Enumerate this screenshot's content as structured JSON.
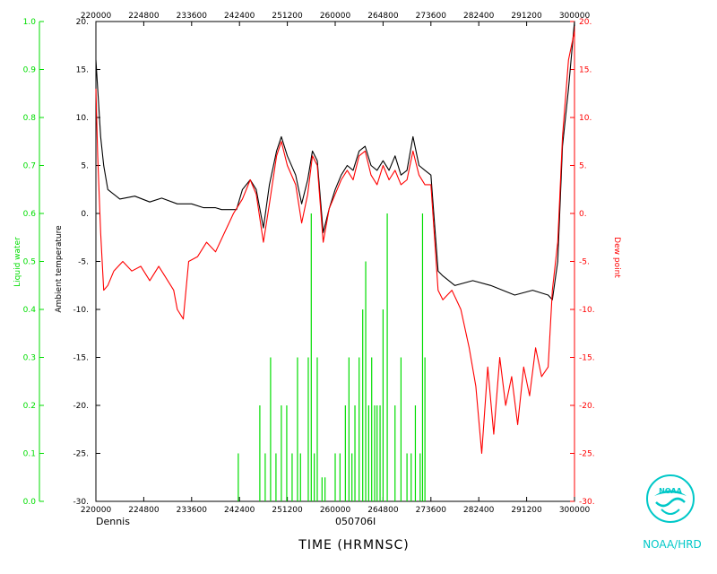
{
  "labels": {
    "storm": "Dennis",
    "flight_id": "050706I",
    "x_axis_title": "TIME (HRMNSC)",
    "left_outer_axis_title": "Liquid water",
    "left_inner_axis_title": "Ambient temperature",
    "right_axis_title": "Dew point",
    "logo_text": "NOAA/HRD",
    "logo_emblem_text": "NOAA"
  },
  "colors": {
    "temperature": "#000000",
    "dewpoint": "#ff0000",
    "liquid_water": "#00dd00",
    "logo": "#00c8c8"
  },
  "chart_data": {
    "type": "line",
    "xlim": [
      220000,
      300000
    ],
    "x_tick_labels": [
      "220000",
      "224800",
      "233600",
      "242400",
      "251200",
      "260000",
      "264800",
      "273600",
      "282400",
      "291200",
      "300000"
    ],
    "temperature_axis": {
      "ylim": [
        -30,
        20
      ],
      "ticks": [
        "20.",
        "15.",
        "10.",
        "5.",
        "0.",
        "-5.",
        "-10.",
        "-15.",
        "-20.",
        "-25.",
        "-30."
      ]
    },
    "dewpoint_axis": {
      "ylim": [
        -30,
        20
      ],
      "ticks": [
        "20.",
        "15.",
        "10.",
        "5.",
        "0.",
        "-5.",
        "-10.",
        "-15.",
        "-20.",
        "-25.",
        "-30."
      ]
    },
    "liquid_water_axis": {
      "ylim": [
        0,
        1
      ],
      "ticks": [
        "1.0",
        "0.9",
        "0.8",
        "0.7",
        "0.6",
        "0.5",
        "0.4",
        "0.3",
        "0.2",
        "0.1",
        "0.0"
      ]
    },
    "series": [
      {
        "name": "Ambient temperature",
        "axis": "temperature",
        "x": [
          220000,
          220300,
          220800,
          221300,
          222000,
          224000,
          226500,
          229000,
          231000,
          233600,
          236000,
          238000,
          240000,
          241000,
          243500,
          244500,
          245800,
          246800,
          248000,
          249000,
          250200,
          251000,
          252000,
          253400,
          254400,
          255400,
          256200,
          257000,
          258000,
          259000,
          260000,
          261000,
          262000,
          263000,
          264000,
          265000,
          266000,
          267000,
          268000,
          269000,
          270000,
          271000,
          272000,
          273000,
          274000,
          275000,
          276000,
          277200,
          278000,
          280000,
          283000,
          286000,
          290000,
          293000,
          295600,
          296300,
          297200,
          298000,
          299000,
          300000
        ],
        "y": [
          16,
          13,
          8,
          5,
          2.5,
          1.5,
          1.8,
          1.2,
          1.6,
          1.0,
          1.0,
          0.6,
          0.6,
          0.4,
          0.4,
          2.5,
          3.5,
          2.5,
          -1.5,
          3.0,
          6.5,
          8.0,
          6.0,
          4.0,
          1.0,
          3.5,
          6.5,
          5.5,
          -2.0,
          0.5,
          2.5,
          4.0,
          5.0,
          4.5,
          6.5,
          7.0,
          5.0,
          4.5,
          5.5,
          4.5,
          6.0,
          4.0,
          4.5,
          8.0,
          5.0,
          4.5,
          4.0,
          -6.0,
          -6.5,
          -7.5,
          -7.0,
          -7.5,
          -8.5,
          -8.0,
          -8.5,
          -9.0,
          -5.0,
          7.0,
          13.0,
          20.0
        ]
      },
      {
        "name": "Dew point",
        "axis": "dewpoint",
        "x": [
          220000,
          220300,
          220800,
          221300,
          222000,
          223000,
          224500,
          226000,
          227500,
          229000,
          230500,
          231500,
          233000,
          233600,
          234600,
          235500,
          237000,
          238500,
          240000,
          241500,
          243000,
          244500,
          245800,
          246800,
          248000,
          249000,
          250200,
          251000,
          252000,
          253400,
          254400,
          255400,
          256200,
          257000,
          258000,
          259000,
          260000,
          261000,
          262000,
          263000,
          264000,
          265000,
          266000,
          267000,
          268000,
          269000,
          270000,
          271000,
          272000,
          273000,
          274000,
          275000,
          276000,
          277200,
          278000,
          279500,
          281000,
          282400,
          283500,
          284500,
          285500,
          286500,
          287500,
          288500,
          289500,
          290500,
          291500,
          292500,
          293500,
          294500,
          295600,
          296300,
          297200,
          298000,
          299000,
          300000
        ],
        "y": [
          13,
          6,
          -2,
          -8,
          -7.5,
          -6,
          -5,
          -6,
          -5.5,
          -7,
          -5.5,
          -6.5,
          -8,
          -10,
          -11,
          -5,
          -4.5,
          -3,
          -4,
          -2,
          0,
          1.5,
          3.5,
          2.0,
          -3.0,
          1.0,
          6.0,
          7.5,
          5.0,
          3.0,
          -1.0,
          2.0,
          6.0,
          5.0,
          -3.0,
          0.5,
          2.0,
          3.5,
          4.5,
          3.5,
          6.0,
          6.5,
          4.0,
          3.0,
          5.0,
          3.5,
          4.5,
          3.0,
          3.5,
          6.5,
          4.0,
          3.0,
          3.0,
          -8.0,
          -9.0,
          -8.0,
          -10.0,
          -14.0,
          -18.0,
          -25.0,
          -16.0,
          -23.0,
          -15.0,
          -20.0,
          -17.0,
          -22.0,
          -16.0,
          -19.0,
          -14.0,
          -17.0,
          -16.0,
          -8.0,
          -3.0,
          8.0,
          16.0,
          19.0
        ]
      },
      {
        "name": "Liquid water",
        "axis": "liquid_water",
        "x": [
          243800,
          247400,
          248300,
          249200,
          250100,
          251000,
          251900,
          252800,
          253700,
          254200,
          255500,
          256000,
          256500,
          257000,
          257800,
          258300,
          260000,
          260800,
          261700,
          262300,
          262800,
          263300,
          264000,
          264600,
          265100,
          265600,
          266100,
          266600,
          267000,
          267500,
          268000,
          268700,
          270000,
          271000,
          272000,
          272700,
          273400,
          274200,
          274600,
          275000
        ],
        "y": [
          0.1,
          0.2,
          0.1,
          0.3,
          0.1,
          0.2,
          0.2,
          0.1,
          0.3,
          0.1,
          0.3,
          0.6,
          0.1,
          0.3,
          0.05,
          0.05,
          0.1,
          0.1,
          0.2,
          0.3,
          0.1,
          0.2,
          0.3,
          0.4,
          0.5,
          0.2,
          0.3,
          0.2,
          0.2,
          0.2,
          0.4,
          0.6,
          0.2,
          0.3,
          0.1,
          0.1,
          0.2,
          0.1,
          0.6,
          0.3
        ]
      }
    ]
  }
}
